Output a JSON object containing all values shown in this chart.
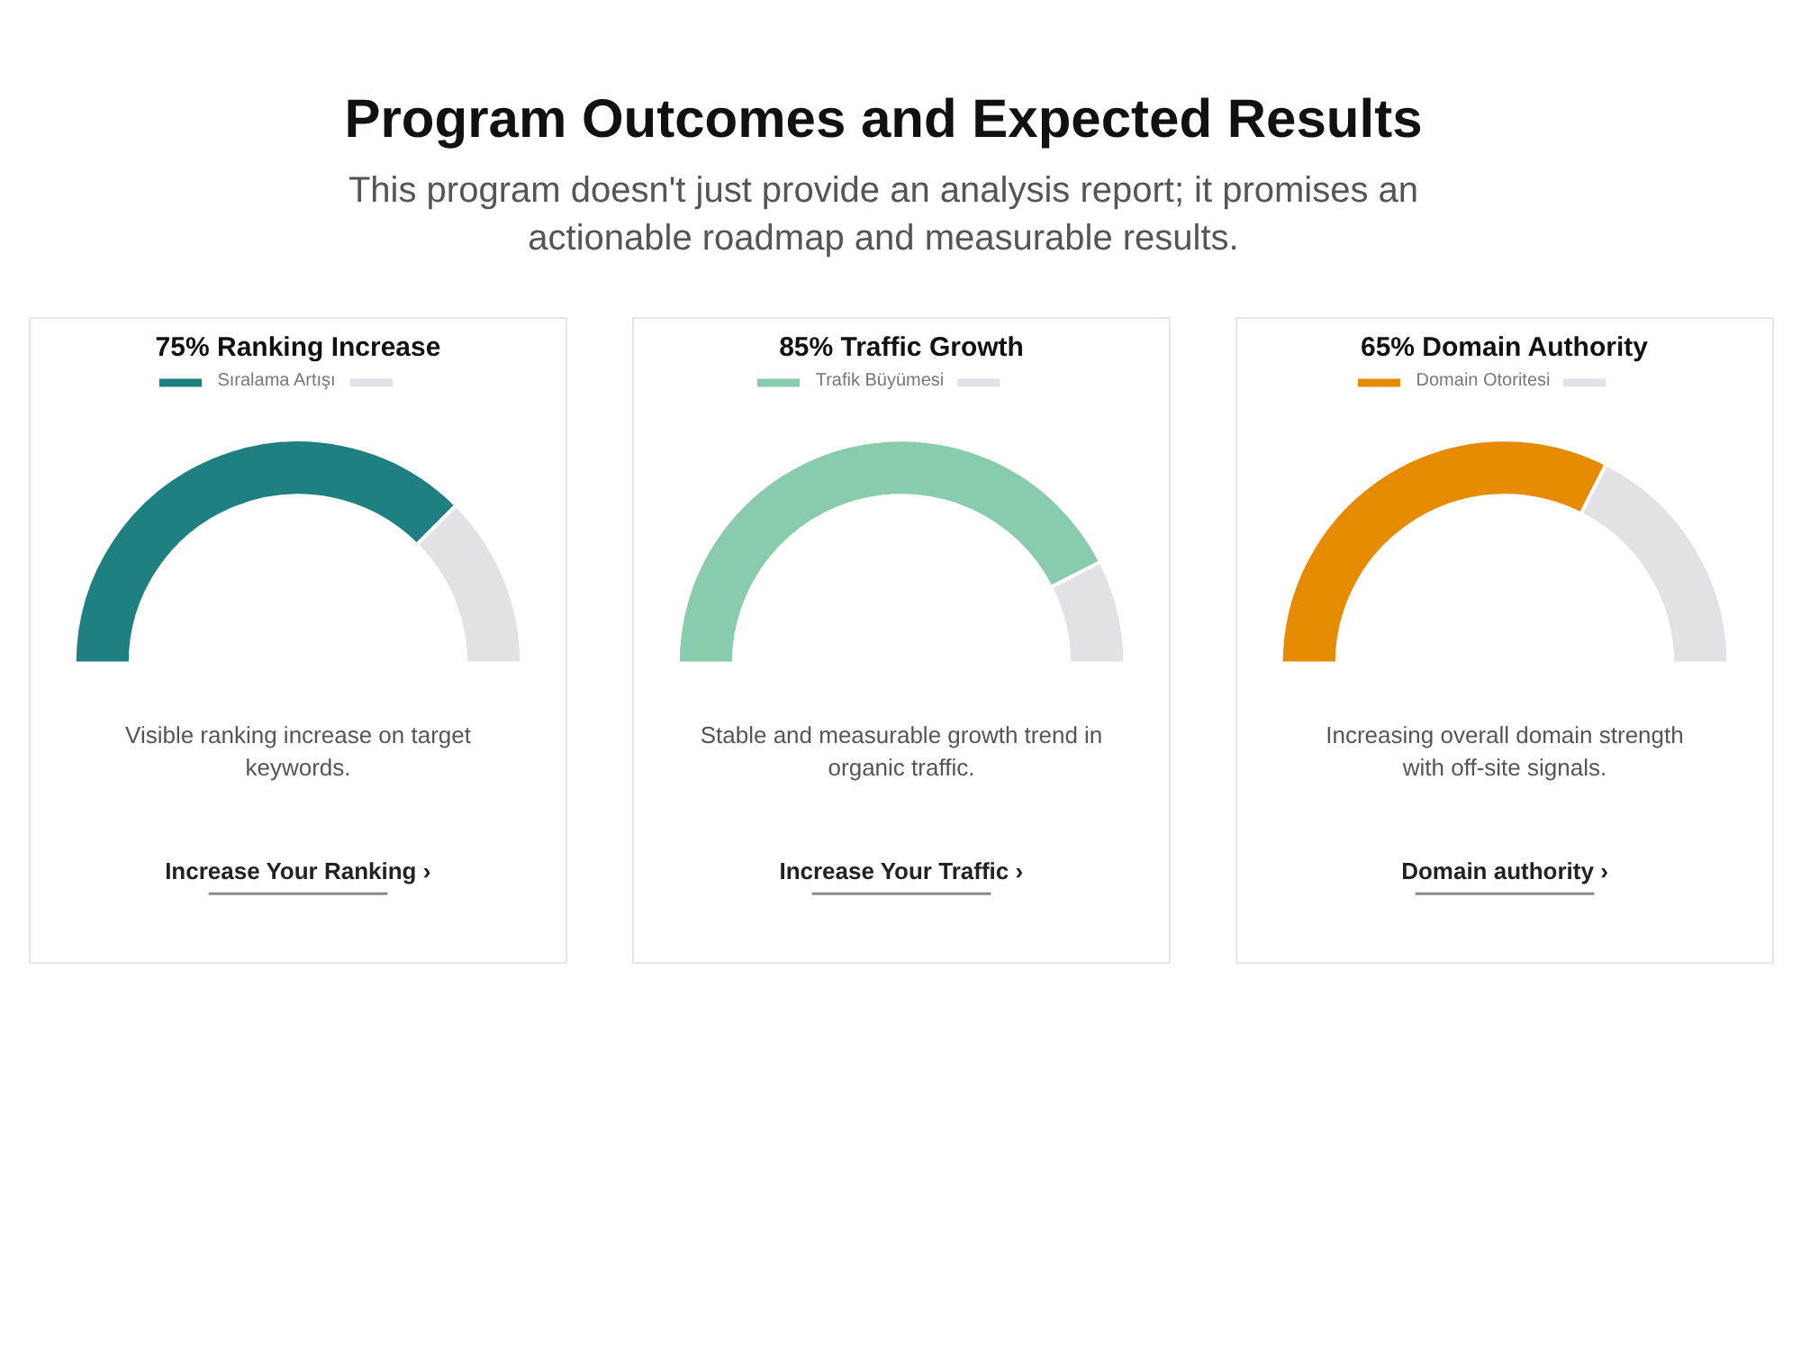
{
  "chart_data": [
    {
      "type": "other",
      "title": "Program Outcomes and Expected Results",
      "subtitle": "This program doesn't just provide an analysis report; it promises an actionable roadmap and measurable results."
    },
    {
      "type": "donut",
      "title": "75% Ranking Increase",
      "categories": [
        "Sıralama Artışı",
        null
      ],
      "values": [
        75,
        25
      ],
      "colors": [
        "#1e8080",
        "#e1e1e6"
      ],
      "legend": "top",
      "annotations": [
        "Visible ranking increase on target keywords.",
        "Increase Your Ranking ›"
      ]
    },
    {
      "type": "donut",
      "title": "85% Traffic Growth",
      "categories": [
        "Trafik Büyümesi",
        null
      ],
      "values": [
        85,
        15
      ],
      "colors": [
        "#88cbad",
        "#e1e1e6"
      ],
      "legend": "top",
      "annotations": [
        "Stable and measurable growth trend in organic traffic.",
        "Increase Your Traffic ›"
      ]
    },
    {
      "type": "donut",
      "title": "65% Domain Authority",
      "categories": [
        "Domain Otoritesi",
        null
      ],
      "values": [
        65,
        35
      ],
      "colors": [
        "#e68a00",
        "#e1e1e6"
      ],
      "legend": "top",
      "annotations": [
        "Increasing overall domain strength with off-site signals.",
        "Domain authority ›"
      ]
    }
  ]
}
